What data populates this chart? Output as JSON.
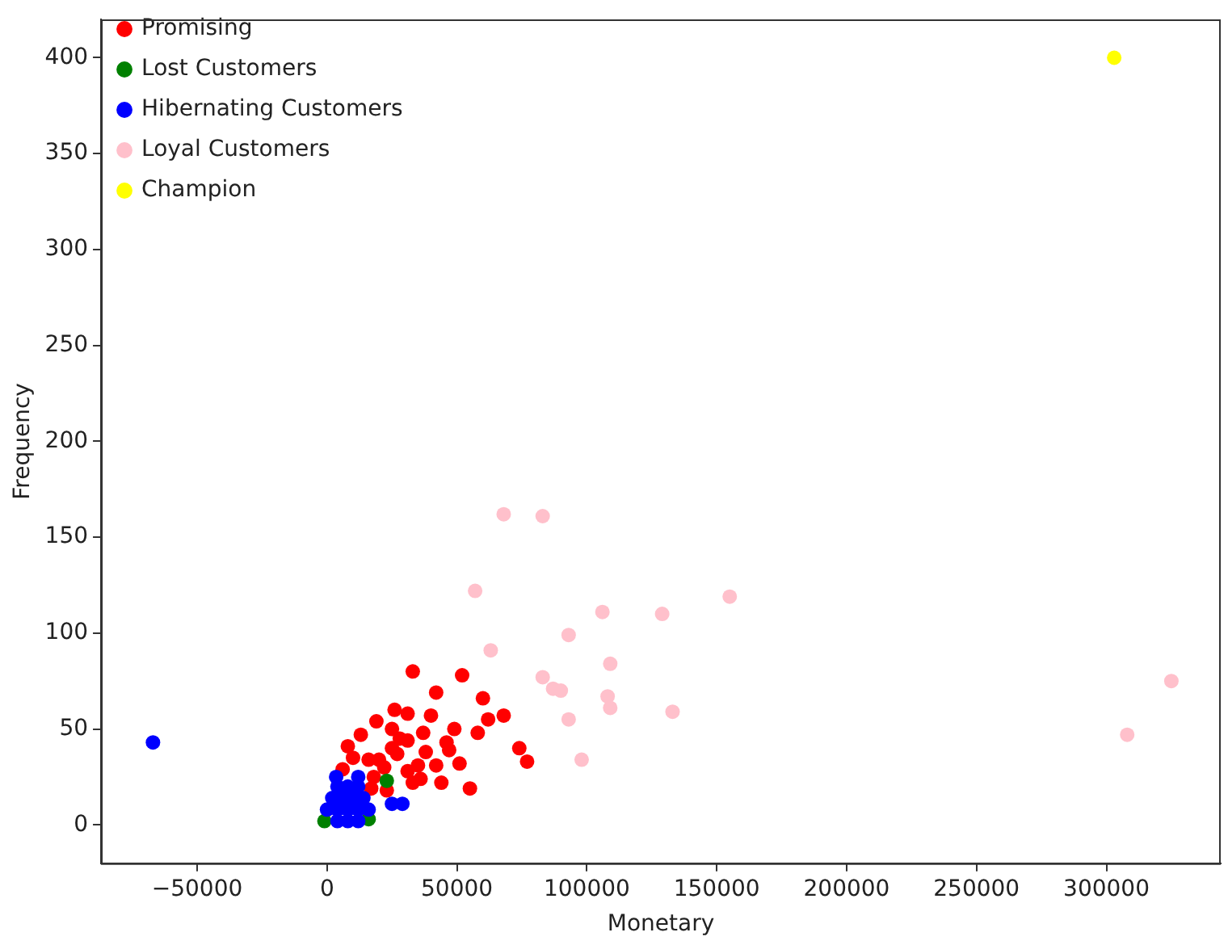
{
  "chart_data": {
    "type": "scatter",
    "xlabel": "Monetary",
    "ylabel": "Frequency",
    "xlim": [
      -87000,
      344000
    ],
    "ylim": [
      -20,
      420
    ],
    "xticks": [
      {
        "value": -50000,
        "label": "−50000"
      },
      0,
      50000,
      100000,
      150000,
      200000,
      250000,
      300000
    ],
    "yticks": [
      0,
      50,
      100,
      150,
      200,
      250,
      300,
      350,
      400
    ],
    "grid": false,
    "legend": "top left",
    "marker": "circle",
    "series": [
      {
        "name": "Promising",
        "color": "#ff0000",
        "x": [
          33000,
          52000,
          42000,
          60000,
          68000,
          62000,
          58000,
          49000,
          40000,
          74000,
          77000,
          51000,
          55000,
          26000,
          31000,
          19000,
          13000,
          25000,
          37000,
          46000,
          31000,
          47000,
          42000,
          44000,
          33000,
          23000,
          16000,
          27000,
          35000,
          18000,
          6000,
          31000,
          20000,
          17000,
          25000,
          10000,
          22000,
          28000,
          8000,
          36000,
          38000
        ],
        "values": [
          80,
          78,
          69,
          66,
          57,
          55,
          48,
          50,
          57,
          40,
          33,
          32,
          19,
          60,
          58,
          54,
          47,
          50,
          48,
          43,
          44,
          39,
          31,
          22,
          22,
          18,
          34,
          37,
          31,
          25,
          29,
          28,
          34,
          19,
          40,
          35,
          30,
          45,
          41,
          24,
          38
        ]
      },
      {
        "name": "Lost Customers",
        "color": "#008000",
        "x": [
          23000,
          16000,
          -1000
        ],
        "values": [
          23,
          3,
          2
        ]
      },
      {
        "name": "Hibernating Customers",
        "color": "#0000ff",
        "x": [
          -67000,
          25000,
          29000,
          4000,
          8000,
          12000,
          0,
          4000,
          8000,
          12000,
          16000,
          2000,
          6000,
          10000,
          14000,
          4000,
          8000,
          12000,
          3500,
          12000
        ],
        "values": [
          43,
          11,
          11,
          2,
          2,
          2,
          8,
          8,
          8,
          8,
          8,
          14,
          14,
          14,
          14,
          20,
          20,
          20,
          25,
          25
        ]
      },
      {
        "name": "Loyal Customers",
        "color": "#ffc0cb",
        "x": [
          68000,
          83000,
          57000,
          155000,
          106000,
          129000,
          93000,
          63000,
          109000,
          83000,
          87000,
          90000,
          108000,
          109000,
          93000,
          133000,
          98000,
          325000,
          308000
        ],
        "values": [
          162,
          161,
          122,
          119,
          111,
          110,
          99,
          91,
          84,
          77,
          71,
          70,
          67,
          61,
          55,
          59,
          34,
          75,
          47
        ]
      },
      {
        "name": "Champion",
        "color": "#ffff00",
        "x": [
          303000
        ],
        "values": [
          400
        ]
      }
    ]
  }
}
